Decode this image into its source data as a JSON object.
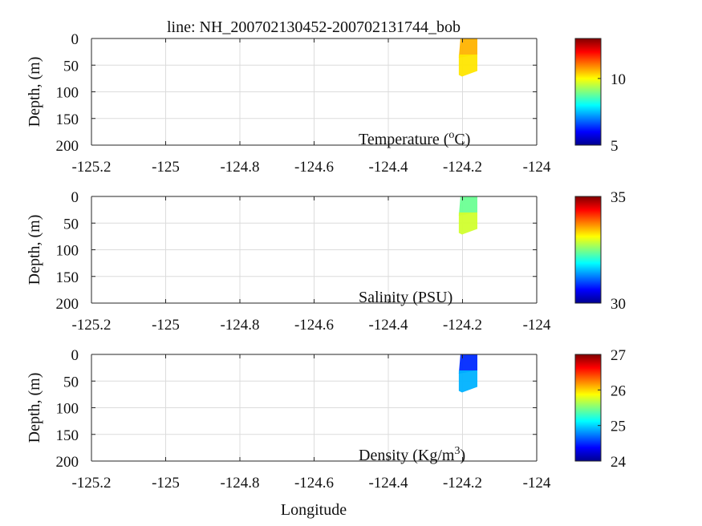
{
  "title": "line: NH_200702130452-200702131744_bob",
  "xlabel": "Longitude",
  "chart_data": [
    {
      "type": "heatmap",
      "panel": "temperature",
      "title": "line: NH_200702130452-200702131744_bob",
      "xlabel": "",
      "ylabel": "Depth, (m)",
      "label_text": "Temperature (",
      "label_sup": "o",
      "label_suffix": "C)",
      "xlim": [
        -125.2,
        -124
      ],
      "ylim": [
        0,
        200
      ],
      "y_reversed": true,
      "grid": true,
      "xticks": [
        "-125.2",
        "-125",
        "-124.8",
        "-124.6",
        "-124.4",
        "-124.2",
        "-124"
      ],
      "yticks": [
        "0",
        "50",
        "100",
        "150",
        "200"
      ],
      "colorbar": {
        "min": 5,
        "max": 13,
        "ticks": [
          "5",
          "10"
        ],
        "colormap": "jet"
      },
      "colorbar_tick_values": [
        5,
        10
      ],
      "data": {
        "lon_range": [
          -124.21,
          -124.16
        ],
        "depth_range": [
          0,
          70
        ],
        "bands": [
          {
            "depth_range": [
              0,
              30
            ],
            "value": 10.6
          },
          {
            "depth_range": [
              30,
              70
            ],
            "value": 10.2
          }
        ]
      }
    },
    {
      "type": "heatmap",
      "panel": "salinity",
      "ylabel": "Depth, (m)",
      "label_text": "Salinity (PSU)",
      "xlim": [
        -125.2,
        -124
      ],
      "ylim": [
        0,
        200
      ],
      "y_reversed": true,
      "grid": true,
      "xticks": [
        "-125.2",
        "-125",
        "-124.8",
        "-124.6",
        "-124.4",
        "-124.2",
        "-124"
      ],
      "yticks": [
        "0",
        "50",
        "100",
        "150",
        "200"
      ],
      "colorbar": {
        "min": 30,
        "max": 35,
        "ticks": [
          "30",
          "35"
        ],
        "colormap": "jet"
      },
      "colorbar_tick_values": [
        30,
        35
      ],
      "data": {
        "lon_range": [
          -124.21,
          -124.16
        ],
        "depth_range": [
          0,
          70
        ],
        "bands": [
          {
            "depth_range": [
              0,
              30
            ],
            "value": 32.4
          },
          {
            "depth_range": [
              30,
              70
            ],
            "value": 32.9
          }
        ]
      }
    },
    {
      "type": "heatmap",
      "panel": "density",
      "xlabel": "Longitude",
      "ylabel": "Depth, (m)",
      "label_text": "Density (Kg/m",
      "label_sup": "3",
      "label_suffix": ")",
      "xlim": [
        -125.2,
        -124
      ],
      "ylim": [
        0,
        200
      ],
      "y_reversed": true,
      "grid": true,
      "xticks": [
        "-125.2",
        "-125",
        "-124.8",
        "-124.6",
        "-124.4",
        "-124.2",
        "-124"
      ],
      "yticks": [
        "0",
        "50",
        "100",
        "150",
        "200"
      ],
      "colorbar": {
        "min": 24,
        "max": 27,
        "ticks": [
          "24",
          "25",
          "26",
          "27"
        ],
        "colormap": "jet"
      },
      "colorbar_tick_values": [
        24,
        25,
        26,
        27
      ],
      "data": {
        "lon_range": [
          -124.21,
          -124.16
        ],
        "depth_range": [
          0,
          70
        ],
        "bands": [
          {
            "depth_range": [
              0,
              30
            ],
            "value": 24.5
          },
          {
            "depth_range": [
              30,
              70
            ],
            "value": 24.9
          }
        ]
      }
    }
  ]
}
